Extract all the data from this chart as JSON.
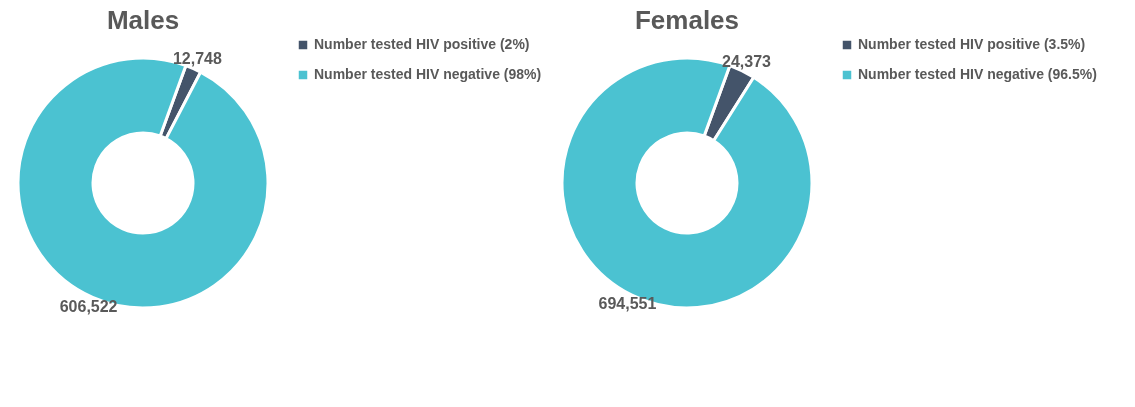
{
  "chart_data": [
    {
      "type": "donut",
      "title": "Males",
      "categories": [
        "Number tested HIV positive (2%)",
        "Number tested HIV negative (98%)"
      ],
      "values": [
        12748,
        606522
      ],
      "value_labels": [
        "12,748",
        "606,522"
      ],
      "colors": [
        "#44546a",
        "#4bc2d1"
      ],
      "legend": "right"
    },
    {
      "type": "donut",
      "title": "Females",
      "categories": [
        "Number tested HIV positive (3.5%)",
        "Number tested HIV negative (96.5%)"
      ],
      "values": [
        24373,
        694551
      ],
      "value_labels": [
        "24,373",
        "694,551"
      ],
      "colors": [
        "#44546a",
        "#4bc2d1"
      ],
      "legend": "right"
    }
  ]
}
